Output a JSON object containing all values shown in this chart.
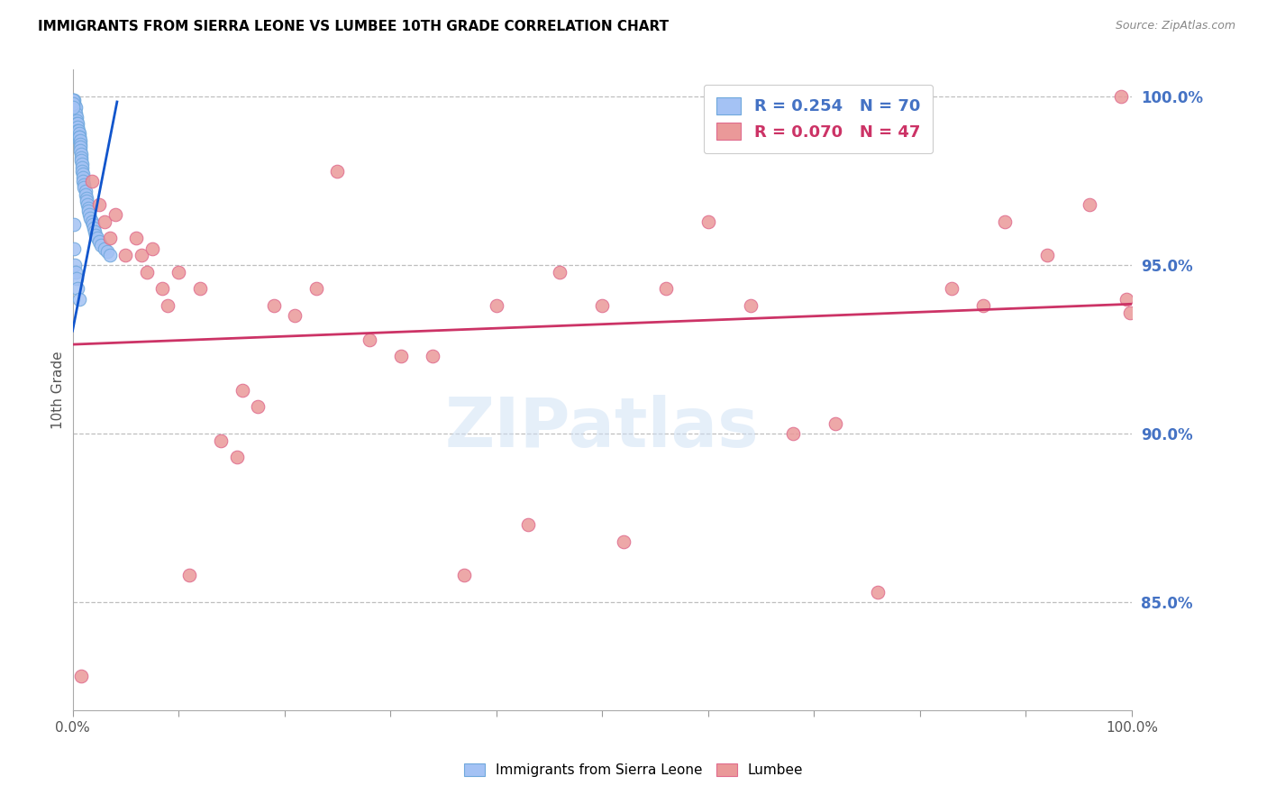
{
  "title": "IMMIGRANTS FROM SIERRA LEONE VS LUMBEE 10TH GRADE CORRELATION CHART",
  "source": "Source: ZipAtlas.com",
  "ylabel": "10th Grade",
  "right_ytick_labels": [
    "100.0%",
    "95.0%",
    "90.0%",
    "85.0%"
  ],
  "right_ytick_values": [
    1.0,
    0.95,
    0.9,
    0.85
  ],
  "watermark": "ZIPatlas",
  "legend_blue_r": "R = 0.254",
  "legend_blue_n": "N = 70",
  "legend_pink_r": "R = 0.070",
  "legend_pink_n": "N = 47",
  "blue_color": "#a4c2f4",
  "blue_edge_color": "#6fa8dc",
  "pink_color": "#ea9999",
  "pink_edge_color": "#e06c8e",
  "blue_line_color": "#1155cc",
  "pink_line_color": "#cc3366",
  "grid_color": "#b0b0b0",
  "title_color": "#000000",
  "right_axis_color": "#4472c4",
  "blue_legend_color": "#4472c4",
  "pink_legend_color": "#cc3366",
  "xmin": 0.0,
  "xmax": 1.0,
  "ymin": 0.818,
  "ymax": 1.008,
  "background_color": "#ffffff",
  "blue_scatter_x": [
    0.0008,
    0.001,
    0.001,
    0.0012,
    0.0015,
    0.002,
    0.002,
    0.002,
    0.0025,
    0.003,
    0.003,
    0.003,
    0.0035,
    0.004,
    0.004,
    0.004,
    0.0045,
    0.005,
    0.005,
    0.005,
    0.0055,
    0.006,
    0.006,
    0.006,
    0.0065,
    0.007,
    0.007,
    0.007,
    0.0075,
    0.008,
    0.008,
    0.008,
    0.009,
    0.009,
    0.009,
    0.01,
    0.01,
    0.01,
    0.011,
    0.011,
    0.012,
    0.012,
    0.013,
    0.013,
    0.014,
    0.015,
    0.015,
    0.016,
    0.017,
    0.018,
    0.019,
    0.02,
    0.021,
    0.022,
    0.023,
    0.025,
    0.027,
    0.03,
    0.033,
    0.035,
    0.0005,
    0.0006,
    0.0007,
    0.001,
    0.0015,
    0.002,
    0.003,
    0.004,
    0.005,
    0.006
  ],
  "blue_scatter_y": [
    0.999,
    0.998,
    0.997,
    0.999,
    0.998,
    0.997,
    0.996,
    0.995,
    0.996,
    0.997,
    0.995,
    0.993,
    0.994,
    0.993,
    0.992,
    0.991,
    0.992,
    0.991,
    0.99,
    0.989,
    0.99,
    0.989,
    0.988,
    0.987,
    0.988,
    0.987,
    0.986,
    0.985,
    0.984,
    0.983,
    0.982,
    0.981,
    0.98,
    0.979,
    0.978,
    0.977,
    0.976,
    0.975,
    0.974,
    0.973,
    0.972,
    0.971,
    0.97,
    0.969,
    0.968,
    0.967,
    0.966,
    0.965,
    0.964,
    0.963,
    0.962,
    0.961,
    0.96,
    0.959,
    0.958,
    0.957,
    0.956,
    0.955,
    0.954,
    0.953,
    0.999,
    0.998,
    0.997,
    0.962,
    0.955,
    0.95,
    0.948,
    0.946,
    0.943,
    0.94
  ],
  "pink_scatter_x": [
    0.008,
    0.018,
    0.025,
    0.03,
    0.035,
    0.04,
    0.05,
    0.06,
    0.065,
    0.07,
    0.075,
    0.085,
    0.09,
    0.1,
    0.11,
    0.12,
    0.14,
    0.155,
    0.16,
    0.175,
    0.19,
    0.21,
    0.23,
    0.25,
    0.28,
    0.31,
    0.34,
    0.37,
    0.4,
    0.43,
    0.46,
    0.5,
    0.52,
    0.56,
    0.6,
    0.64,
    0.68,
    0.72,
    0.76,
    0.83,
    0.86,
    0.88,
    0.92,
    0.96,
    0.99,
    0.995,
    0.998
  ],
  "pink_scatter_y": [
    0.828,
    0.975,
    0.968,
    0.963,
    0.958,
    0.965,
    0.953,
    0.958,
    0.953,
    0.948,
    0.955,
    0.943,
    0.938,
    0.948,
    0.858,
    0.943,
    0.898,
    0.893,
    0.913,
    0.908,
    0.938,
    0.935,
    0.943,
    0.978,
    0.928,
    0.923,
    0.923,
    0.858,
    0.938,
    0.873,
    0.948,
    0.938,
    0.868,
    0.943,
    0.963,
    0.938,
    0.9,
    0.903,
    0.853,
    0.943,
    0.938,
    0.963,
    0.953,
    0.968,
    1.0,
    0.94,
    0.936
  ],
  "blue_trend_start_x": 0.0,
  "blue_trend_end_x": 0.042,
  "blue_trend_start_y": 0.9305,
  "blue_trend_end_y": 0.9985,
  "pink_trend_start_x": 0.0,
  "pink_trend_end_x": 1.0,
  "pink_trend_start_y": 0.9265,
  "pink_trend_end_y": 0.9385
}
